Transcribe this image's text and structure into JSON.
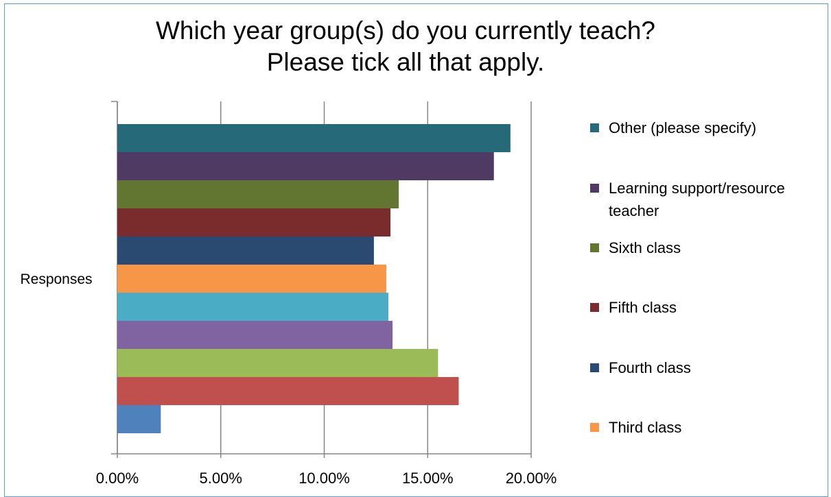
{
  "chart_data": {
    "type": "bar",
    "orientation": "horizontal",
    "title": "Which year group(s) do you currently teach? Please tick all that apply.",
    "categories": [
      "Responses"
    ],
    "xlim": [
      0,
      20
    ],
    "xticks": [
      "0.00%",
      "5.00%",
      "10.00%",
      "15.00%",
      "20.00%"
    ],
    "grid": "vertical",
    "legend_position": "right",
    "series": [
      {
        "name": "Other (please specify)",
        "value": 19.0,
        "color": "#266a7a"
      },
      {
        "name": "Learning support/resource teacher",
        "value": 18.2,
        "color": "#4e3a62"
      },
      {
        "name": "Sixth class",
        "value": 13.6,
        "color": "#627631"
      },
      {
        "name": "Fifth class",
        "value": 13.2,
        "color": "#7a2b2b"
      },
      {
        "name": "Fourth class",
        "value": 12.4,
        "color": "#2b4a72"
      },
      {
        "name": "Third class",
        "value": 13.0,
        "color": "#f79646"
      },
      {
        "value": 13.1,
        "color": "#4bacc6"
      },
      {
        "value": 13.3,
        "color": "#8064a2"
      },
      {
        "value": 15.5,
        "color": "#9bbb59"
      },
      {
        "value": 16.5,
        "color": "#c0504d"
      },
      {
        "value": 2.1,
        "color": "#4f81bd"
      }
    ]
  },
  "legend_items": [
    {
      "label": "Other (please specify)",
      "color": "#266a7a"
    },
    {
      "label": "Learning support/resource teacher",
      "color": "#4e3a62"
    },
    {
      "label": "Sixth class",
      "color": "#627631"
    },
    {
      "label": "Fifth class",
      "color": "#7a2b2b"
    },
    {
      "label": "Fourth class",
      "color": "#2b4a72"
    },
    {
      "label": "Third class",
      "color": "#f79646"
    }
  ]
}
